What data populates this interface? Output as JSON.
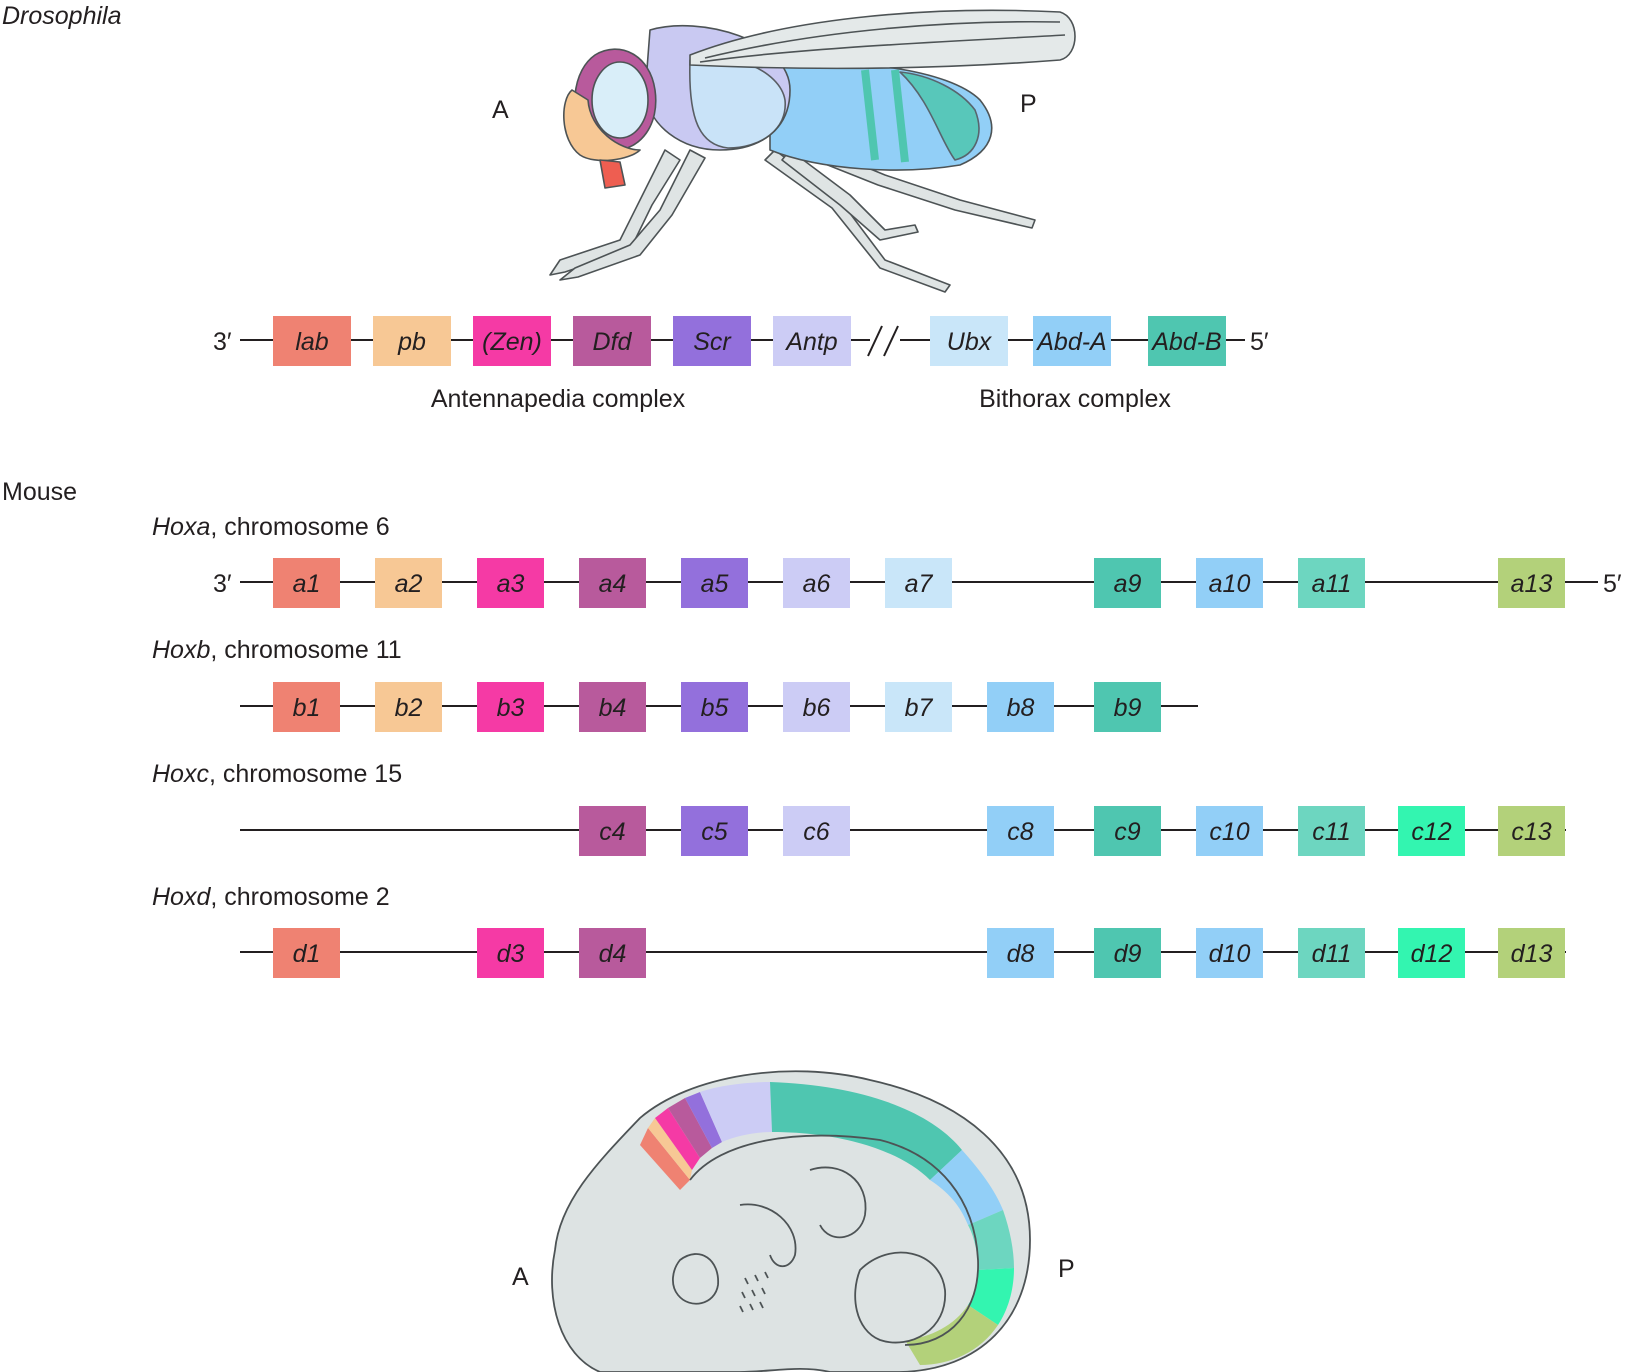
{
  "fly": {
    "organism_label": "Drosophila",
    "anterior_label": "A",
    "posterior_label": "P",
    "end_3": "3′",
    "end_5": "5′",
    "complex_antennapedia": "Antennapedia complex",
    "complex_bithorax": "Bithorax complex",
    "genes": [
      {
        "label": "lab",
        "color": "#ef8272"
      },
      {
        "label": "pb",
        "color": "#f7c895"
      },
      {
        "label": "(Zen)",
        "color": "#f53aa5"
      },
      {
        "label": "Dfd",
        "color": "#b85a9c"
      },
      {
        "label": "Scr",
        "color": "#9370dc"
      },
      {
        "label": "Antp",
        "color": "#ccccf5"
      },
      {
        "label": "Ubx",
        "color": "#c9e6f9"
      },
      {
        "label": "Abd-A",
        "color": "#92cff7"
      },
      {
        "label": "Abd-B",
        "color": "#4fc6b0"
      }
    ]
  },
  "mouse": {
    "organism_label": "Mouse",
    "anterior_label": "A",
    "posterior_label": "P",
    "clusters": [
      {
        "name": "Hoxa",
        "chromosome": ", chromosome 6",
        "end_3": "3′",
        "end_5": "5′",
        "genes": [
          {
            "label": "a1",
            "color": "#ef8272"
          },
          {
            "label": "a2",
            "color": "#f7c895"
          },
          {
            "label": "a3",
            "color": "#f53aa5"
          },
          {
            "label": "a4",
            "color": "#b85a9c"
          },
          {
            "label": "a5",
            "color": "#9370dc"
          },
          {
            "label": "a6",
            "color": "#ccccf5"
          },
          {
            "label": "a7",
            "color": "#c9e6f9"
          },
          {
            "label": "a9",
            "color": "#4fc6b0"
          },
          {
            "label": "a10",
            "color": "#92cff7"
          },
          {
            "label": "a11",
            "color": "#6dd6c0"
          },
          {
            "label": "a13",
            "color": "#b3d17a"
          }
        ]
      },
      {
        "name": "Hoxb",
        "chromosome": ", chromosome 11",
        "genes": [
          {
            "label": "b1",
            "color": "#ef8272"
          },
          {
            "label": "b2",
            "color": "#f7c895"
          },
          {
            "label": "b3",
            "color": "#f53aa5"
          },
          {
            "label": "b4",
            "color": "#b85a9c"
          },
          {
            "label": "b5",
            "color": "#9370dc"
          },
          {
            "label": "b6",
            "color": "#ccccf5"
          },
          {
            "label": "b7",
            "color": "#c9e6f9"
          },
          {
            "label": "b8",
            "color": "#92cff7"
          },
          {
            "label": "b9",
            "color": "#4fc6b0"
          }
        ]
      },
      {
        "name": "Hoxc",
        "chromosome": ", chromosome 15",
        "genes": [
          {
            "label": "c4",
            "color": "#b85a9c"
          },
          {
            "label": "c5",
            "color": "#9370dc"
          },
          {
            "label": "c6",
            "color": "#ccccf5"
          },
          {
            "label": "c8",
            "color": "#92cff7"
          },
          {
            "label": "c9",
            "color": "#4fc6b0"
          },
          {
            "label": "c10",
            "color": "#92cff7"
          },
          {
            "label": "c11",
            "color": "#6dd6c0"
          },
          {
            "label": "c12",
            "color": "#33f5b0"
          },
          {
            "label": "c13",
            "color": "#b3d17a"
          }
        ]
      },
      {
        "name": "Hoxd",
        "chromosome": ", chromosome 2",
        "genes": [
          {
            "label": "d1",
            "color": "#ef8272"
          },
          {
            "label": "d3",
            "color": "#f53aa5"
          },
          {
            "label": "d4",
            "color": "#b85a9c"
          },
          {
            "label": "d8",
            "color": "#92cff7"
          },
          {
            "label": "d9",
            "color": "#4fc6b0"
          },
          {
            "label": "d10",
            "color": "#92cff7"
          },
          {
            "label": "d11",
            "color": "#6dd6c0"
          },
          {
            "label": "d12",
            "color": "#33f5b0"
          },
          {
            "label": "d13",
            "color": "#b3d17a"
          }
        ]
      }
    ]
  }
}
